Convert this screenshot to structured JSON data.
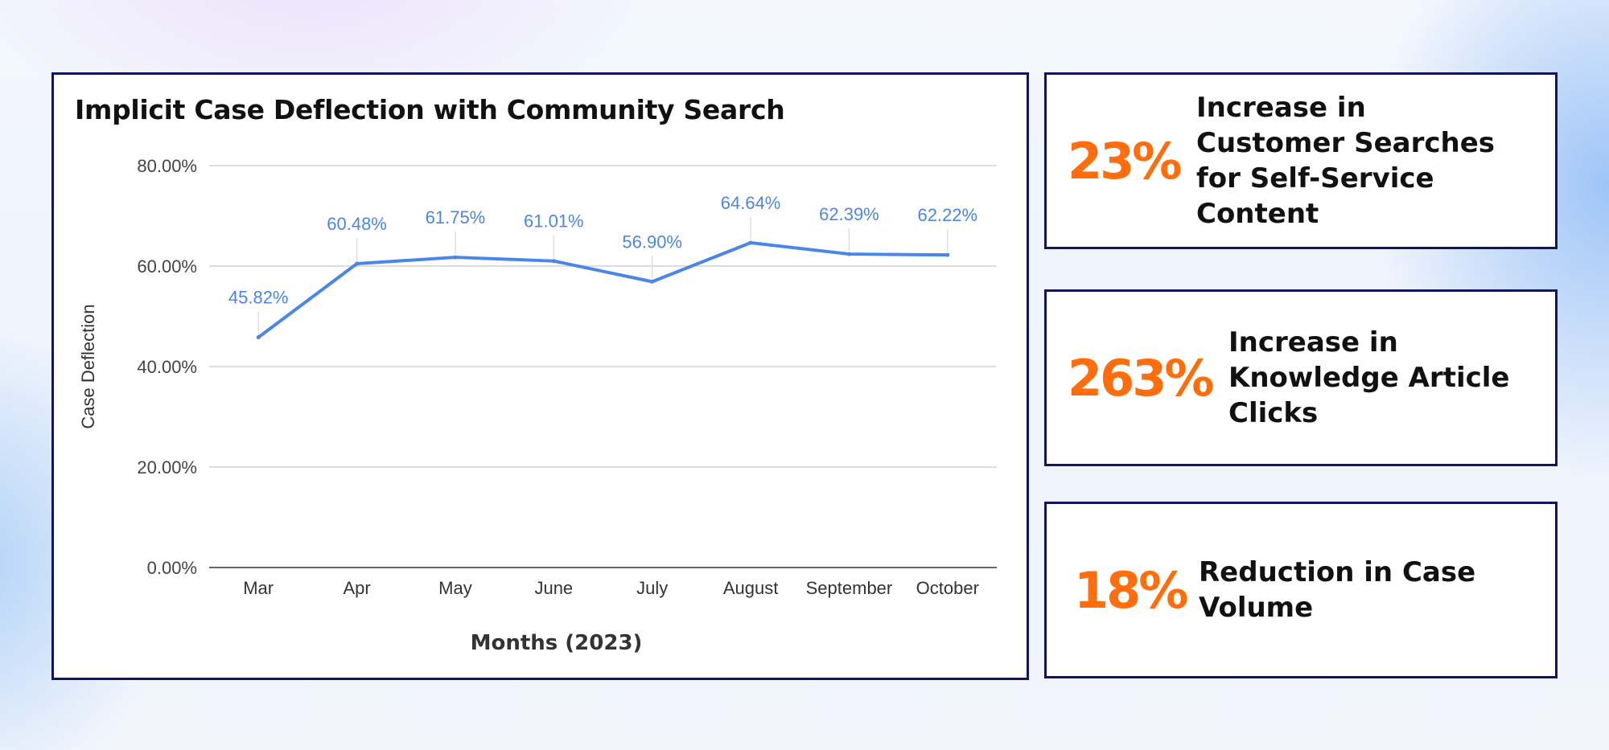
{
  "chart_data": {
    "type": "line",
    "title": "Implicit Case Deflection with Community Search",
    "xlabel": "Months (2023)",
    "ylabel": "Case Deflection",
    "categories": [
      "Mar",
      "Apr",
      "May",
      "June",
      "July",
      "August",
      "September",
      "October"
    ],
    "series": [
      {
        "values": [
          45.82,
          60.48,
          61.75,
          61.01,
          56.9,
          64.64,
          62.39,
          62.22
        ],
        "labels": [
          "45.82%",
          "60.48%",
          "61.75%",
          "61.01%",
          "56.90%",
          "64.64%",
          "62.39%",
          "62.22%"
        ]
      }
    ],
    "ylim": [
      0,
      80
    ],
    "yticks": [
      0,
      20,
      40,
      60,
      80
    ],
    "ytick_labels": [
      "0.00%",
      "20.00%",
      "40.00%",
      "60.00%",
      "80.00%"
    ],
    "grid": true,
    "line_color": "#4a86e8"
  },
  "stats": [
    {
      "value": "23%",
      "lines": [
        "Increase in",
        "Customer Searches",
        "for Self-Service",
        "Content"
      ]
    },
    {
      "value": "263%",
      "lines": [
        "Increase in",
        "Knowledge Article",
        "Clicks"
      ]
    },
    {
      "value": "18%",
      "lines": [
        "Reduction in Case",
        "Volume"
      ]
    }
  ],
  "colors": {
    "accent": "#ff6d0d",
    "border": "#14145a",
    "line": "#4a86e8"
  }
}
